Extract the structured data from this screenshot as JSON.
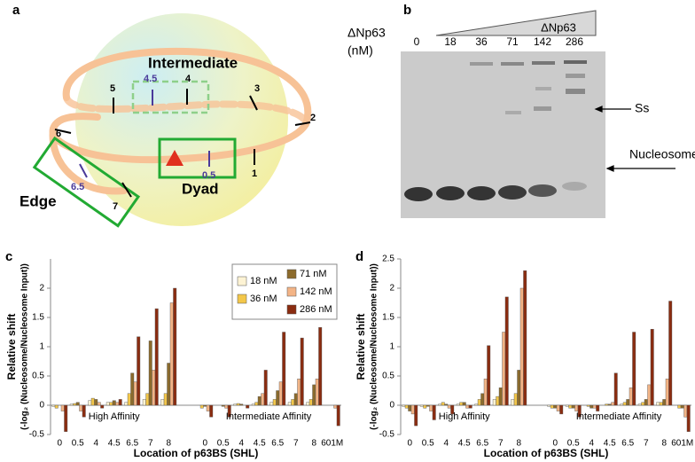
{
  "panel_a": {
    "label": "a",
    "regions": [
      "Intermediate",
      "Edge",
      "Dyad"
    ],
    "positions": [
      "4.5",
      "4",
      "5",
      "3",
      "2",
      "6",
      "1",
      "0.5",
      "6.5",
      "7"
    ]
  },
  "panel_b": {
    "label": "b",
    "protein": "ΔNp63",
    "unit": "(nM)",
    "wedge_label": "ΔNp63",
    "lanes": [
      "0",
      "18",
      "36",
      "71",
      "142",
      "286"
    ],
    "bands": [
      "Ss",
      "Nucleosome"
    ]
  },
  "chart_data": [
    {
      "label": "c",
      "type": "bar",
      "y_label": [
        "Relative shift",
        "(-log₂ (Nucleosome/Nucleosome Input))"
      ],
      "x_label": "Location of p63BS (SHL)",
      "group_labels": [
        "High Affinity",
        "Intermediate Affinity"
      ],
      "categories": [
        "0",
        "0.5",
        "4",
        "4.5",
        "6.5",
        "7",
        "8",
        "0",
        "0.5",
        "4",
        "4.5",
        "6.5",
        "7",
        "8",
        "601M"
      ],
      "series": [
        {
          "name": "18 nM",
          "color": "#fdf3d4",
          "values": [
            -0.02,
            0.02,
            0.08,
            0.05,
            0.05,
            0.1,
            0.1,
            0.0,
            0.0,
            0.02,
            0.02,
            0.05,
            0.05,
            0.05,
            0.0
          ]
        },
        {
          "name": "36 nM",
          "color": "#f3c74a",
          "values": [
            -0.05,
            0.03,
            0.12,
            0.05,
            0.2,
            0.2,
            0.2,
            -0.05,
            0.0,
            0.03,
            0.05,
            0.1,
            0.1,
            0.1,
            0.0
          ]
        },
        {
          "name": "71 nM",
          "color": "#8c6b2c",
          "values": [
            0.0,
            0.05,
            0.1,
            0.08,
            0.55,
            1.1,
            0.72,
            -0.02,
            -0.02,
            0.02,
            0.15,
            0.25,
            0.2,
            0.35,
            0.0
          ]
        },
        {
          "name": "142 nM",
          "color": "#f3b486",
          "values": [
            -0.1,
            -0.1,
            0.05,
            0.05,
            0.4,
            0.6,
            1.75,
            -0.1,
            -0.05,
            0.0,
            0.2,
            0.4,
            0.45,
            0.45,
            -0.05
          ]
        },
        {
          "name": "286 nM",
          "color": "#8a2c10",
          "values": [
            -0.45,
            -0.2,
            -0.05,
            0.1,
            1.17,
            1.65,
            2.0,
            -0.2,
            -0.2,
            -0.05,
            0.6,
            1.25,
            1.15,
            1.33,
            -0.35
          ]
        }
      ],
      "ylim": [
        -0.5,
        2.5
      ],
      "yticks": [
        -0.5,
        0,
        0.5,
        1,
        1.5,
        2
      ],
      "legend": "upper right"
    },
    {
      "label": "d",
      "type": "bar",
      "y_label": [
        "Relative shift",
        "(-log₂ (Nucleosome/Nucleosome Input))"
      ],
      "x_label": "Location of p63BS (SHL)",
      "group_labels": [
        "High Affinity",
        "Intermediate Affinity"
      ],
      "categories": [
        "0",
        "0.5",
        "4",
        "4.5",
        "6.5",
        "7",
        "8",
        "0",
        "0.5",
        "4",
        "4.5",
        "6.5",
        "7",
        "8",
        "601M"
      ],
      "series": [
        {
          "color": "#fdf3d4",
          "values": [
            -0.02,
            -0.02,
            0.02,
            0.02,
            0.02,
            0.1,
            0.1,
            -0.02,
            -0.02,
            0.0,
            0.0,
            0.02,
            0.02,
            0.05,
            0.0
          ]
        },
        {
          "color": "#f3c74a",
          "values": [
            -0.05,
            -0.05,
            0.05,
            0.05,
            0.1,
            0.15,
            0.2,
            -0.05,
            -0.05,
            -0.02,
            0.02,
            0.05,
            0.05,
            0.05,
            -0.05
          ]
        },
        {
          "color": "#8c6b2c",
          "values": [
            -0.1,
            -0.02,
            0.02,
            0.05,
            0.2,
            0.3,
            0.6,
            -0.05,
            -0.05,
            -0.05,
            0.02,
            0.1,
            0.1,
            0.1,
            -0.05
          ]
        },
        {
          "color": "#f3b486",
          "values": [
            -0.15,
            -0.1,
            -0.05,
            -0.05,
            0.45,
            1.25,
            2.0,
            -0.1,
            -0.1,
            -0.05,
            0.05,
            0.3,
            0.35,
            0.45,
            -0.2
          ]
        },
        {
          "color": "#8a2c10",
          "values": [
            -0.35,
            -0.25,
            -0.15,
            -0.05,
            1.02,
            1.85,
            2.3,
            -0.15,
            -0.2,
            -0.1,
            0.55,
            1.25,
            1.3,
            1.78,
            -0.45
          ]
        }
      ],
      "ylim": [
        -0.5,
        2.5
      ],
      "yticks": [
        -0.5,
        0,
        0.5,
        1,
        1.5,
        2,
        2.5
      ]
    }
  ]
}
